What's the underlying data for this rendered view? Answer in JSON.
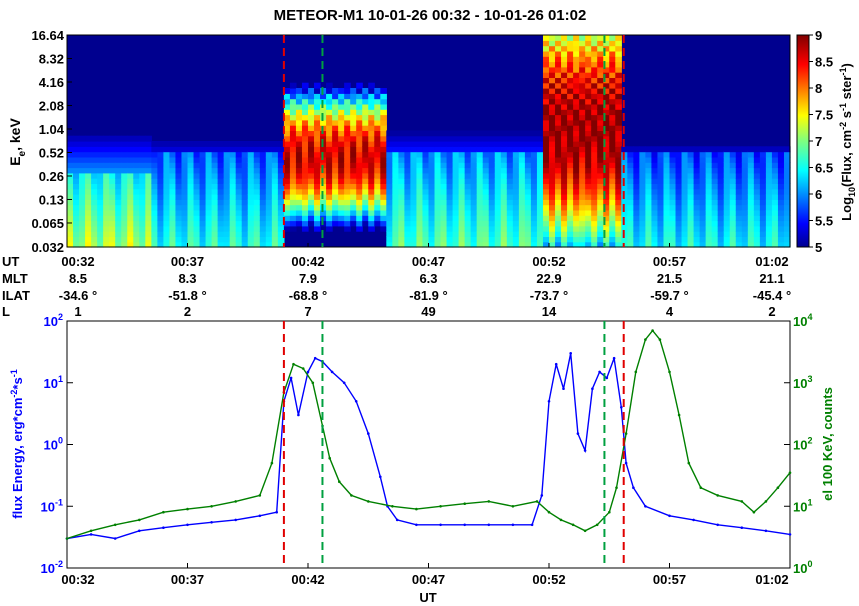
{
  "title": "METEOR-M1  10-01-26 00:32 - 10-01-26 01:02",
  "colors": {
    "energy": "#0000ff",
    "counts": "#008000",
    "red_marker": "#e00000",
    "green_marker": "#00a040"
  },
  "chart_data": [
    {
      "type": "heatmap",
      "ylabel_main": "E",
      "ylabel_sub": "e",
      "ylabel_rest": ", keV",
      "yticks": [
        "16.64",
        "8.32",
        "4.16",
        "2.08",
        "1.04",
        "0.52",
        "0.26",
        "0.13",
        "0.065",
        "0.032"
      ],
      "ylim": [
        0.032,
        16.64
      ],
      "yscale": "log",
      "colorbar": {
        "label": "Log10(Flux, cm-2 s-1 ster-1)",
        "label_a": "Log",
        "label_b": "10",
        "label_c": "(Flux, cm",
        "label_d": "-2",
        "label_e": " s",
        "label_f": "-1",
        "label_g": " ster",
        "label_h": "-1",
        "label_i": ")",
        "ticks": [
          "9",
          "8.5",
          "8",
          "7.5",
          "7",
          "6.5",
          "6",
          "5.5",
          "5"
        ],
        "range": [
          5,
          9
        ]
      },
      "x_minutes": [
        32,
        62
      ],
      "events": [
        {
          "t0": 40.9,
          "t1": 45.2,
          "peak_emin": 0.13,
          "peak_emax": 1.6,
          "level": 8.6
        },
        {
          "t0": 51.7,
          "t1": 55.0,
          "peak_emin": 0.065,
          "peak_emax": 16.6,
          "level": 8.9
        }
      ],
      "background": [
        {
          "t0": 32,
          "t1": 35.5,
          "emax": 0.3,
          "level": 7.2
        },
        {
          "t0": 35.5,
          "t1": 40.9,
          "emax": 0.5,
          "level": 6.6
        },
        {
          "t0": 45.2,
          "t1": 51.7,
          "emax": 0.5,
          "level": 6.8
        },
        {
          "t0": 55.0,
          "t1": 62,
          "emax": 0.5,
          "level": 6.5
        }
      ]
    },
    {
      "type": "line",
      "x_label": "UT",
      "x_ticks": [
        "00:32",
        "00:37",
        "00:42",
        "00:47",
        "00:52",
        "00:57",
        "01:02"
      ],
      "x_minutes": [
        32,
        62
      ],
      "y_left": {
        "label": "flux Energy, erg*cm-2*s-1",
        "label_main": "flux Energy, erg*cm",
        "label_s1": "-2",
        "label_mid": "*s",
        "label_s2": "-1",
        "scale": "log",
        "range": [
          0.01,
          100
        ],
        "tick_base": "10",
        "tick_exps": [
          "2",
          "1",
          "0",
          "-1",
          "-2"
        ]
      },
      "y_right": {
        "label": "el 100 KeV, counts",
        "scale": "log",
        "range": [
          1,
          10000
        ],
        "tick_base": "10",
        "tick_exps": [
          "4",
          "3",
          "2",
          "1",
          "0"
        ]
      },
      "series": [
        {
          "name": "flux Energy",
          "axis": "left",
          "values": [
            [
              32,
              0.03
            ],
            [
              33,
              0.035
            ],
            [
              34,
              0.03
            ],
            [
              35,
              0.04
            ],
            [
              36,
              0.045
            ],
            [
              37,
              0.05
            ],
            [
              38,
              0.055
            ],
            [
              39,
              0.06
            ],
            [
              40,
              0.07
            ],
            [
              40.7,
              0.08
            ],
            [
              41.0,
              5
            ],
            [
              41.3,
              12
            ],
            [
              41.6,
              3
            ],
            [
              42.0,
              15
            ],
            [
              42.3,
              25
            ],
            [
              42.6,
              22
            ],
            [
              43.0,
              15
            ],
            [
              43.5,
              10
            ],
            [
              44.0,
              5
            ],
            [
              44.5,
              1.5
            ],
            [
              45.0,
              0.3
            ],
            [
              45.3,
              0.1
            ],
            [
              45.7,
              0.06
            ],
            [
              46.5,
              0.05
            ],
            [
              47.5,
              0.05
            ],
            [
              48.5,
              0.05
            ],
            [
              49.5,
              0.05
            ],
            [
              50.5,
              0.05
            ],
            [
              51.3,
              0.05
            ],
            [
              51.7,
              0.15
            ],
            [
              52.0,
              5
            ],
            [
              52.3,
              20
            ],
            [
              52.6,
              8
            ],
            [
              52.9,
              30
            ],
            [
              53.2,
              1.5
            ],
            [
              53.5,
              0.8
            ],
            [
              53.8,
              8
            ],
            [
              54.1,
              15
            ],
            [
              54.4,
              12
            ],
            [
              54.7,
              25
            ],
            [
              55.0,
              4
            ],
            [
              55.2,
              0.5
            ],
            [
              55.5,
              0.2
            ],
            [
              56,
              0.1
            ],
            [
              57,
              0.07
            ],
            [
              58,
              0.06
            ],
            [
              59,
              0.05
            ],
            [
              60,
              0.045
            ],
            [
              61,
              0.04
            ],
            [
              62,
              0.035
            ]
          ]
        },
        {
          "name": "el 100 KeV",
          "axis": "right",
          "values": [
            [
              32,
              3
            ],
            [
              33,
              4
            ],
            [
              34,
              5
            ],
            [
              35,
              6
            ],
            [
              36,
              8
            ],
            [
              37,
              9
            ],
            [
              38,
              10
            ],
            [
              39,
              12
            ],
            [
              40,
              15
            ],
            [
              40.5,
              50
            ],
            [
              41.0,
              700
            ],
            [
              41.4,
              2000
            ],
            [
              41.8,
              1700
            ],
            [
              42.2,
              1000
            ],
            [
              42.6,
              200
            ],
            [
              42.9,
              60
            ],
            [
              43.3,
              25
            ],
            [
              43.8,
              15
            ],
            [
              44.5,
              12
            ],
            [
              45.5,
              10
            ],
            [
              46.5,
              9
            ],
            [
              47.5,
              10
            ],
            [
              48.5,
              11
            ],
            [
              49.5,
              12
            ],
            [
              50.5,
              10
            ],
            [
              51.5,
              12
            ],
            [
              52.0,
              8
            ],
            [
              52.5,
              6
            ],
            [
              53.0,
              5
            ],
            [
              53.5,
              4
            ],
            [
              54.0,
              5
            ],
            [
              54.5,
              8
            ],
            [
              54.8,
              20
            ],
            [
              55.2,
              150
            ],
            [
              55.6,
              1500
            ],
            [
              56.0,
              5000
            ],
            [
              56.3,
              7000
            ],
            [
              56.6,
              5000
            ],
            [
              57.0,
              1500
            ],
            [
              57.4,
              300
            ],
            [
              57.8,
              50
            ],
            [
              58.3,
              20
            ],
            [
              59.0,
              15
            ],
            [
              60.0,
              12
            ],
            [
              60.5,
              8
            ],
            [
              61.0,
              12
            ],
            [
              61.5,
              20
            ],
            [
              62.0,
              35
            ]
          ]
        }
      ]
    }
  ],
  "markers": [
    {
      "t": 41.0,
      "color": "red"
    },
    {
      "t": 42.6,
      "color": "green"
    },
    {
      "t": 54.3,
      "color": "green"
    },
    {
      "t": 55.1,
      "color": "red"
    }
  ],
  "orbit": {
    "rows": [
      {
        "label": "UT",
        "values": [
          "00:32",
          "00:37",
          "00:42",
          "00:47",
          "00:52",
          "00:57",
          "01:02"
        ]
      },
      {
        "label": "MLT",
        "values": [
          "8.5",
          "8.3",
          "7.9",
          "6.3",
          "22.9",
          "21.5",
          "21.1"
        ]
      },
      {
        "label": "ILAT",
        "values": [
          "-34.6 °",
          "-51.8 °",
          "-68.8 °",
          "-81.9 °",
          "-73.7 °",
          "-59.7 °",
          "-45.4 °"
        ]
      },
      {
        "label": "L",
        "values": [
          "1",
          "2",
          "7",
          "49",
          "14",
          "4",
          "2"
        ]
      }
    ]
  }
}
